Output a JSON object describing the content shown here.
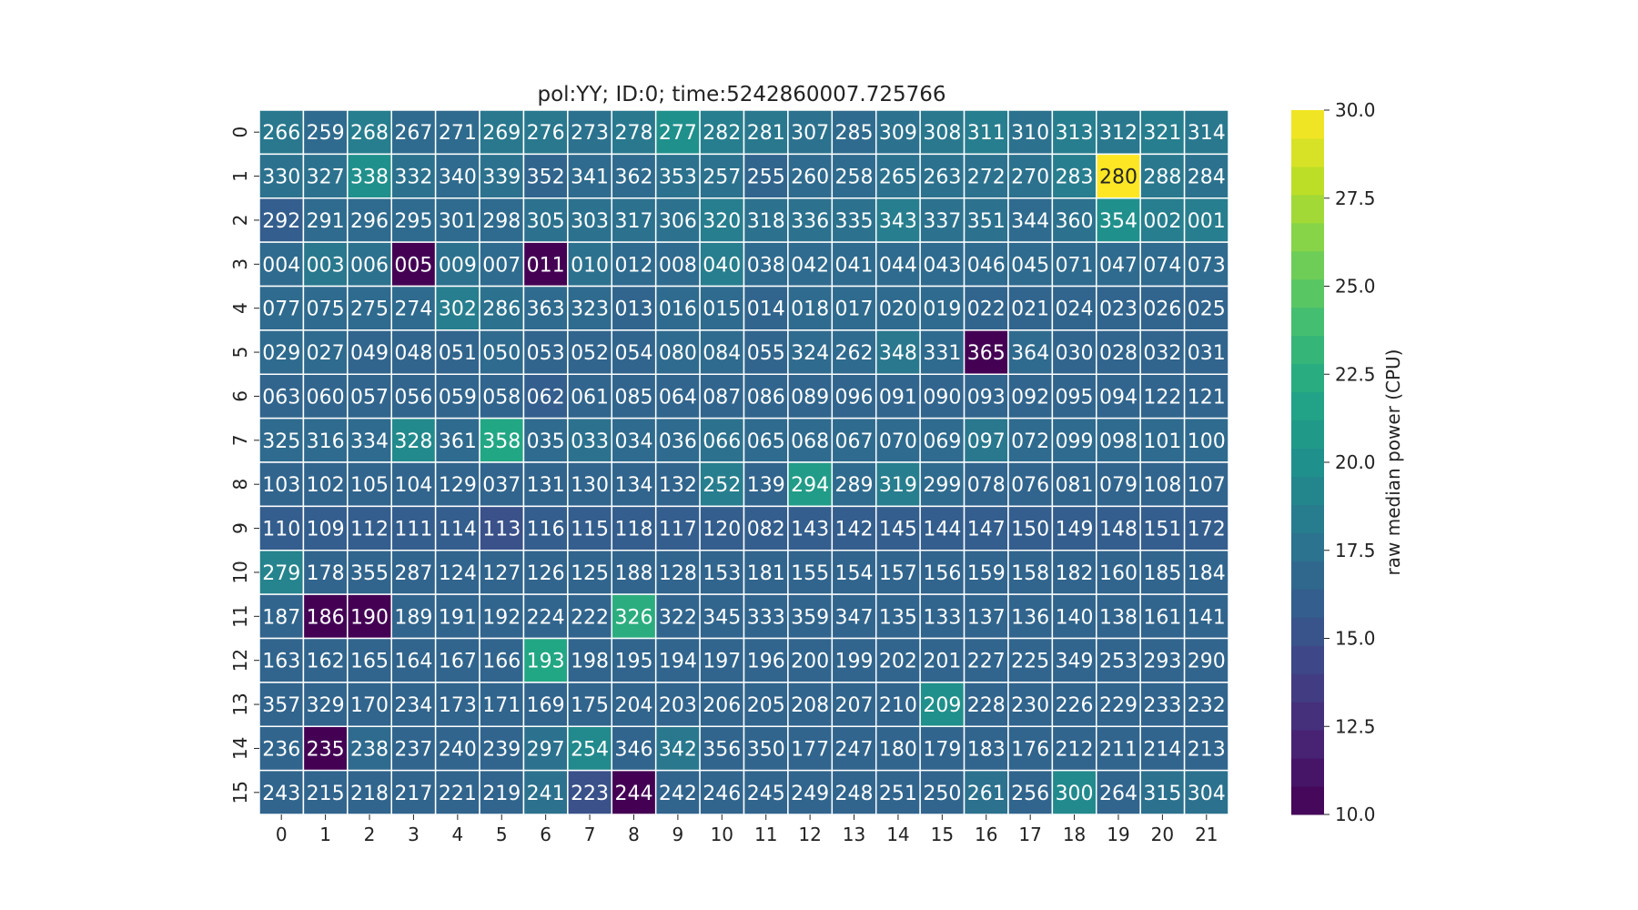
{
  "chart_data": {
    "type": "heatmap",
    "title": "pol:YY; ID:0; time:5242860007.725766",
    "x_tick_labels": [
      "0",
      "1",
      "2",
      "3",
      "4",
      "5",
      "6",
      "7",
      "8",
      "9",
      "10",
      "11",
      "12",
      "13",
      "14",
      "15",
      "16",
      "17",
      "18",
      "19",
      "20",
      "21"
    ],
    "y_tick_labels": [
      "0",
      "1",
      "2",
      "3",
      "4",
      "5",
      "6",
      "7",
      "8",
      "9",
      "10",
      "11",
      "12",
      "13",
      "14",
      "15"
    ],
    "annotations": [
      [
        "266",
        "259",
        "268",
        "267",
        "271",
        "269",
        "276",
        "273",
        "278",
        "277",
        "282",
        "281",
        "307",
        "285",
        "309",
        "308",
        "311",
        "310",
        "313",
        "312",
        "321",
        "314"
      ],
      [
        "330",
        "327",
        "338",
        "332",
        "340",
        "339",
        "352",
        "341",
        "362",
        "353",
        "257",
        "255",
        "260",
        "258",
        "265",
        "263",
        "272",
        "270",
        "283",
        "280",
        "288",
        "284"
      ],
      [
        "292",
        "291",
        "296",
        "295",
        "301",
        "298",
        "305",
        "303",
        "317",
        "306",
        "320",
        "318",
        "336",
        "335",
        "343",
        "337",
        "351",
        "344",
        "360",
        "354",
        "002",
        "001"
      ],
      [
        "004",
        "003",
        "006",
        "005",
        "009",
        "007",
        "011",
        "010",
        "012",
        "008",
        "040",
        "038",
        "042",
        "041",
        "044",
        "043",
        "046",
        "045",
        "071",
        "047",
        "074",
        "073"
      ],
      [
        "077",
        "075",
        "275",
        "274",
        "302",
        "286",
        "363",
        "323",
        "013",
        "016",
        "015",
        "014",
        "018",
        "017",
        "020",
        "019",
        "022",
        "021",
        "024",
        "023",
        "026",
        "025"
      ],
      [
        "029",
        "027",
        "049",
        "048",
        "051",
        "050",
        "053",
        "052",
        "054",
        "080",
        "084",
        "055",
        "324",
        "262",
        "348",
        "331",
        "365",
        "364",
        "030",
        "028",
        "032",
        "031"
      ],
      [
        "063",
        "060",
        "057",
        "056",
        "059",
        "058",
        "062",
        "061",
        "085",
        "064",
        "087",
        "086",
        "089",
        "096",
        "091",
        "090",
        "093",
        "092",
        "095",
        "094",
        "122",
        "121"
      ],
      [
        "325",
        "316",
        "334",
        "328",
        "361",
        "358",
        "035",
        "033",
        "034",
        "036",
        "066",
        "065",
        "068",
        "067",
        "070",
        "069",
        "097",
        "072",
        "099",
        "098",
        "101",
        "100"
      ],
      [
        "103",
        "102",
        "105",
        "104",
        "129",
        "037",
        "131",
        "130",
        "134",
        "132",
        "252",
        "139",
        "294",
        "289",
        "319",
        "299",
        "078",
        "076",
        "081",
        "079",
        "108",
        "107"
      ],
      [
        "110",
        "109",
        "112",
        "111",
        "114",
        "113",
        "116",
        "115",
        "118",
        "117",
        "120",
        "082",
        "143",
        "142",
        "145",
        "144",
        "147",
        "150",
        "149",
        "148",
        "151",
        "172"
      ],
      [
        "279",
        "178",
        "355",
        "287",
        "124",
        "127",
        "126",
        "125",
        "188",
        "128",
        "153",
        "181",
        "155",
        "154",
        "157",
        "156",
        "159",
        "158",
        "182",
        "160",
        "185",
        "184"
      ],
      [
        "187",
        "186",
        "190",
        "189",
        "191",
        "192",
        "224",
        "222",
        "326",
        "322",
        "345",
        "333",
        "359",
        "347",
        "135",
        "133",
        "137",
        "136",
        "140",
        "138",
        "161",
        "141"
      ],
      [
        "163",
        "162",
        "165",
        "164",
        "167",
        "166",
        "193",
        "198",
        "195",
        "194",
        "197",
        "196",
        "200",
        "199",
        "202",
        "201",
        "227",
        "225",
        "349",
        "253",
        "293",
        "290"
      ],
      [
        "357",
        "329",
        "170",
        "234",
        "173",
        "171",
        "169",
        "175",
        "204",
        "203",
        "206",
        "205",
        "208",
        "207",
        "210",
        "209",
        "228",
        "230",
        "226",
        "229",
        "233",
        "232"
      ],
      [
        "236",
        "235",
        "238",
        "237",
        "240",
        "239",
        "297",
        "254",
        "346",
        "342",
        "356",
        "350",
        "177",
        "247",
        "180",
        "179",
        "183",
        "176",
        "212",
        "211",
        "214",
        "213"
      ],
      [
        "243",
        "215",
        "218",
        "217",
        "221",
        "219",
        "241",
        "223",
        "244",
        "242",
        "246",
        "245",
        "249",
        "248",
        "251",
        "250",
        "261",
        "256",
        "300",
        "264",
        "315",
        "304"
      ]
    ],
    "values": [
      [
        18.0,
        17.0,
        18.5,
        17.0,
        17.0,
        18.0,
        18.0,
        17.5,
        18.0,
        20.0,
        18.5,
        18.0,
        17.5,
        17.0,
        17.5,
        18.0,
        18.5,
        17.5,
        18.5,
        18.0,
        18.5,
        18.0
      ],
      [
        17.5,
        17.5,
        20.0,
        17.5,
        17.0,
        17.5,
        16.5,
        17.0,
        17.0,
        17.5,
        17.5,
        16.5,
        17.0,
        17.0,
        17.5,
        17.5,
        17.5,
        17.5,
        18.5,
        30.0,
        18.0,
        17.5
      ],
      [
        16.0,
        17.0,
        17.0,
        17.0,
        17.0,
        17.0,
        17.5,
        17.5,
        17.5,
        17.5,
        18.5,
        17.5,
        17.5,
        17.5,
        18.5,
        17.5,
        17.5,
        17.0,
        17.5,
        20.0,
        18.5,
        18.5
      ],
      [
        17.0,
        18.0,
        17.5,
        10.0,
        17.5,
        17.0,
        10.0,
        17.5,
        17.0,
        17.0,
        18.5,
        17.0,
        17.0,
        17.0,
        17.0,
        17.0,
        17.0,
        17.0,
        17.0,
        17.0,
        17.0,
        17.0
      ],
      [
        17.0,
        17.0,
        17.0,
        17.0,
        18.5,
        17.5,
        17.0,
        17.0,
        16.5,
        17.0,
        17.0,
        16.5,
        17.0,
        17.0,
        17.0,
        17.0,
        16.5,
        16.5,
        16.5,
        16.5,
        16.5,
        16.5
      ],
      [
        17.0,
        17.0,
        16.5,
        16.5,
        16.5,
        17.0,
        16.5,
        16.5,
        16.5,
        17.0,
        17.0,
        16.5,
        17.0,
        17.0,
        18.0,
        17.0,
        10.0,
        17.0,
        16.5,
        16.5,
        16.5,
        16.5
      ],
      [
        16.5,
        16.5,
        16.5,
        16.5,
        16.5,
        16.5,
        16.0,
        16.5,
        16.5,
        16.5,
        16.5,
        16.5,
        16.5,
        16.5,
        16.5,
        16.5,
        16.5,
        16.5,
        16.5,
        16.5,
        16.5,
        16.5
      ],
      [
        17.0,
        17.0,
        17.0,
        19.5,
        17.0,
        22.0,
        17.0,
        17.5,
        17.0,
        17.0,
        17.5,
        17.0,
        17.0,
        17.0,
        17.0,
        17.0,
        18.0,
        17.0,
        17.0,
        17.0,
        17.0,
        17.0
      ],
      [
        16.5,
        16.5,
        16.5,
        16.5,
        16.5,
        16.5,
        16.5,
        16.5,
        16.5,
        16.5,
        18.5,
        16.5,
        21.0,
        17.0,
        18.5,
        17.0,
        16.5,
        16.5,
        16.5,
        16.5,
        16.5,
        16.5
      ],
      [
        16.0,
        16.0,
        16.0,
        16.0,
        16.0,
        15.0,
        16.0,
        16.0,
        16.0,
        16.0,
        16.0,
        16.0,
        16.0,
        16.0,
        16.0,
        16.0,
        16.0,
        16.0,
        16.0,
        16.0,
        16.0,
        16.0
      ],
      [
        19.0,
        16.5,
        16.5,
        16.5,
        16.5,
        16.5,
        16.5,
        16.5,
        16.5,
        16.5,
        16.5,
        16.5,
        16.5,
        16.5,
        16.5,
        16.5,
        16.5,
        16.5,
        16.5,
        16.5,
        16.5,
        16.5
      ],
      [
        16.5,
        10.0,
        10.0,
        16.5,
        16.5,
        16.5,
        16.5,
        16.5,
        22.5,
        16.5,
        16.5,
        16.5,
        16.5,
        16.5,
        16.5,
        16.5,
        16.5,
        16.5,
        16.5,
        16.5,
        16.5,
        16.5
      ],
      [
        16.5,
        16.5,
        16.5,
        16.5,
        16.5,
        16.5,
        22.0,
        16.5,
        16.5,
        16.5,
        16.5,
        16.5,
        16.5,
        16.5,
        16.5,
        16.5,
        16.5,
        16.5,
        16.5,
        16.5,
        16.5,
        16.5
      ],
      [
        16.5,
        16.5,
        16.5,
        16.5,
        16.5,
        16.5,
        16.5,
        16.5,
        16.5,
        16.5,
        16.5,
        16.5,
        16.5,
        16.5,
        16.5,
        20.0,
        16.5,
        16.5,
        16.5,
        16.5,
        16.5,
        16.5
      ],
      [
        16.5,
        10.0,
        17.0,
        16.5,
        16.5,
        16.5,
        17.5,
        19.5,
        16.5,
        18.0,
        16.5,
        16.5,
        16.5,
        16.5,
        16.5,
        16.5,
        16.5,
        16.5,
        16.5,
        16.5,
        16.5,
        16.5
      ],
      [
        16.5,
        16.5,
        16.5,
        16.5,
        16.5,
        16.5,
        17.5,
        15.0,
        10.0,
        16.5,
        16.5,
        16.5,
        16.5,
        16.5,
        16.5,
        16.5,
        17.5,
        16.5,
        19.5,
        16.5,
        17.5,
        17.5
      ]
    ],
    "colorbar": {
      "label": "raw median power (CPU)",
      "range": [
        10.0,
        30.0
      ],
      "tick_values": [
        10.0,
        12.5,
        15.0,
        17.5,
        20.0,
        22.5,
        25.0,
        27.5,
        30.0
      ],
      "tick_labels": [
        "10.0",
        "12.5",
        "15.0",
        "17.5",
        "20.0",
        "22.5",
        "25.0",
        "27.5",
        "30.0"
      ],
      "levels": 25,
      "colormap": "viridis"
    },
    "grid": false
  }
}
